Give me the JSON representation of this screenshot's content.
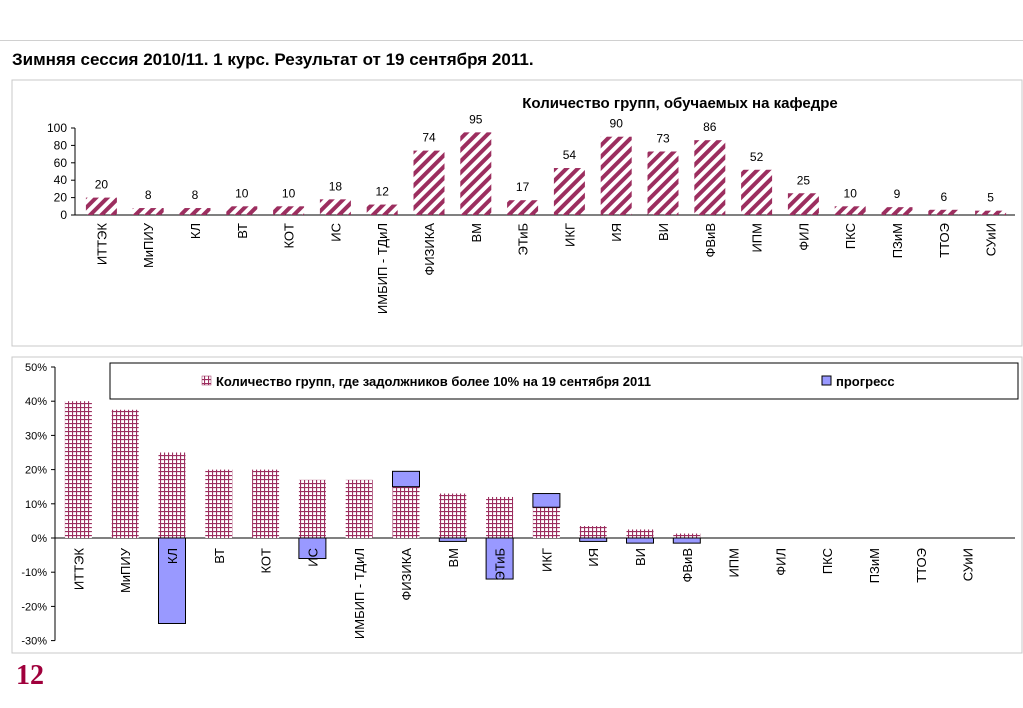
{
  "page": {
    "title": "Зимняя сессия 2010/11. 1 курс.  Результат от 19 сентября 2011.",
    "slide_number": "12"
  },
  "colors": {
    "groups_hatch": "#9c2e5f",
    "debt_hatch": "#9c2e5f",
    "progress_fill": "#9999ff",
    "progress_stroke": "#000000"
  },
  "chart_data": [
    {
      "type": "bar",
      "title": "Количество групп, обучаемых на кафедре",
      "categories": [
        "ИТТЭК",
        "МиПИУ",
        "КЛ",
        "ВТ",
        "КОТ",
        "ИС",
        "ИМБИП - ТДиЛ",
        "ФИЗИКА",
        "ВМ",
        "ЭТиБ",
        "ИКГ",
        "ИЯ",
        "ВИ",
        "ФВиВ",
        "ИПМ",
        "ФИЛ",
        "ПКС",
        "ПЗиМ",
        "ТТОЭ",
        "СУиИ"
      ],
      "values": [
        20,
        8,
        8,
        10,
        10,
        18,
        12,
        74,
        95,
        17,
        54,
        90,
        73,
        86,
        52,
        25,
        10,
        9,
        6,
        5
      ],
      "ylim": [
        0,
        100
      ],
      "yticks": [
        0,
        20,
        40,
        60,
        80,
        100
      ],
      "data_labels": true,
      "grid": false
    },
    {
      "type": "bar",
      "categories": [
        "ИТТЭК",
        "МиПИУ",
        "КЛ",
        "ВТ",
        "КОТ",
        "ИС",
        "ИМБИП - ТДиЛ",
        "ФИЗИКА",
        "ВМ",
        "ЭТиБ",
        "ИКГ",
        "ИЯ",
        "ВИ",
        "ФВиВ",
        "ИПМ",
        "ФИЛ",
        "ПКС",
        "ПЗиМ",
        "ТТОЭ",
        "СУиИ"
      ],
      "series": [
        {
          "name": "Количество групп, где задолжников более  10% на 19 сентября 2011",
          "values": [
            0.4,
            0.375,
            0.25,
            0.2,
            0.2,
            0.17,
            0.17,
            0.15,
            0.13,
            0.12,
            0.09,
            0.035,
            0.025,
            0.013,
            0,
            0,
            0,
            0,
            0,
            0
          ]
        },
        {
          "name": "прогресс",
          "values": [
            0,
            0,
            -0.25,
            0,
            0,
            -0.06,
            0,
            0.045,
            -0.01,
            -0.12,
            0.04,
            -0.01,
            -0.015,
            -0.015,
            0,
            0,
            0,
            0,
            0,
            0
          ]
        }
      ],
      "ylim": [
        -0.3,
        0.5
      ],
      "yticks": [
        "-30%",
        "-20%",
        "-10%",
        "0%",
        "10%",
        "20%",
        "30%",
        "40%",
        "50%"
      ],
      "legend": "top",
      "grid": false
    }
  ]
}
